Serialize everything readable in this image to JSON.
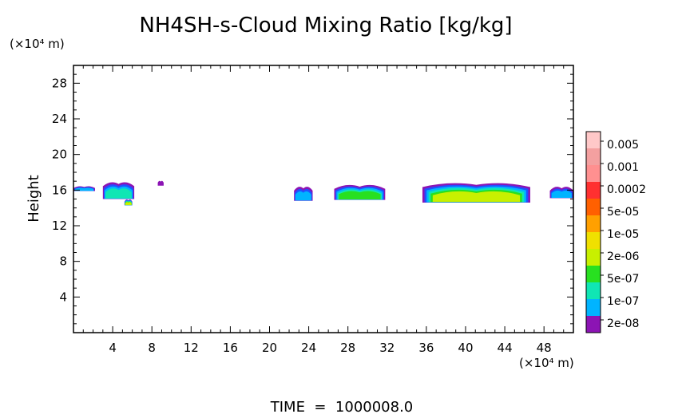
{
  "chart_data": {
    "type": "heatmap",
    "title": "NH4SH-s-Cloud Mixing Ratio [kg/kg]",
    "ylabel": "Height",
    "y_unit": "(×10⁴ m)",
    "x_unit": "(×10⁴ m)",
    "footer": "TIME  =  1000008.0",
    "xlim": [
      0,
      51
    ],
    "ylim": [
      0,
      30
    ],
    "x_ticks": [
      4,
      8,
      12,
      16,
      20,
      24,
      28,
      32,
      36,
      40,
      44,
      48
    ],
    "y_ticks": [
      4,
      8,
      12,
      16,
      20,
      24,
      28
    ],
    "legend": {
      "placement": "right",
      "levels": [
        {
          "label": "0.005",
          "color": "#f4a0a0"
        },
        {
          "label": "0.001",
          "color": "#ff3030"
        },
        {
          "label": "0.0002",
          "color": "#ffa000"
        },
        {
          "label": "5e-05",
          "color": "#c8f000"
        },
        {
          "label": "1e-05",
          "color": "#28e020"
        },
        {
          "label": "2e-06",
          "color": "#10e6b4"
        },
        {
          "label": "5e-07",
          "color": "#00b4ff"
        },
        {
          "label": "1e-07",
          "color": "#2050ff"
        },
        {
          "label": "2e-08",
          "color": "#1a10b8"
        }
      ],
      "extra_colors": [
        "#ffc8c8",
        "#ff9090",
        "#ff6000",
        "#f0e000",
        "#8c14b4"
      ]
    },
    "cloud_regions": [
      {
        "x": [
          0.0,
          2.2
        ],
        "y": [
          15.9,
          16.4
        ],
        "peak_level": "5e-07"
      },
      {
        "x": [
          3.0,
          6.2
        ],
        "y": [
          15.0,
          16.8
        ],
        "peak_level": "2e-06"
      },
      {
        "x": [
          5.2,
          6.0
        ],
        "y": [
          14.3,
          14.9
        ],
        "peak_level": "5e-05"
      },
      {
        "x": [
          8.6,
          9.2
        ],
        "y": [
          16.5,
          17.0
        ],
        "peak_level": "2e-08"
      },
      {
        "x": [
          22.5,
          24.4
        ],
        "y": [
          14.8,
          16.3
        ],
        "peak_level": "5e-07"
      },
      {
        "x": [
          26.6,
          31.8
        ],
        "y": [
          14.9,
          16.5
        ],
        "peak_level": "1e-05"
      },
      {
        "x": [
          35.6,
          46.6
        ],
        "y": [
          14.6,
          16.7
        ],
        "peak_level": "5e-05"
      },
      {
        "x": [
          48.6,
          51.0
        ],
        "y": [
          15.1,
          16.3
        ],
        "peak_level": "5e-07"
      }
    ]
  }
}
